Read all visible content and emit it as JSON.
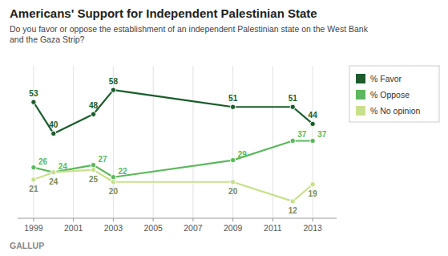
{
  "chart_data": {
    "type": "line",
    "title": "Americans' Support for Independent Palestinian State",
    "subtitle": "Do you favor or oppose the establishment of an independent Palestinian state on the West Bank\nand the Gaza Strip?",
    "source": "GALLUP",
    "x": [
      1999,
      2000,
      2002,
      2003,
      2009,
      2012,
      2013
    ],
    "series": [
      {
        "name": "% Favor",
        "color": "#1a5c2a",
        "values": [
          53,
          40,
          48,
          58,
          51,
          51,
          44
        ]
      },
      {
        "name": "% Oppose",
        "color": "#5cb85c",
        "values": [
          26,
          24,
          27,
          22,
          29,
          37,
          37
        ]
      },
      {
        "name": "% No opinion",
        "color": "#c8e08c",
        "values": [
          21,
          24,
          25,
          20,
          20,
          12,
          19
        ]
      }
    ],
    "xlim": [
      1998.2,
      2014.2
    ],
    "xticks": [
      1999,
      2001,
      2003,
      2005,
      2007,
      2009,
      2011,
      2013
    ],
    "ylim": [
      5,
      68
    ],
    "tick_labels": "x",
    "grid": "x",
    "legend": "right",
    "data_labels": true,
    "marker": "circle"
  }
}
